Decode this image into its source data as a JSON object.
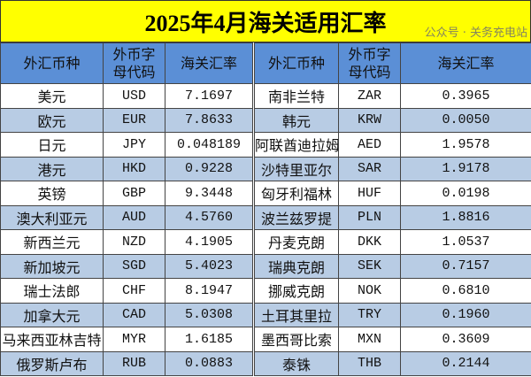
{
  "title": "2025年4月海关适用汇率",
  "headers": [
    "外汇币种",
    "外币字母代码",
    "海关汇率",
    "外汇币种",
    "外币字母代码",
    "海关汇率"
  ],
  "rows": [
    [
      "美元",
      "USD",
      "7.1697",
      "南非兰特",
      "ZAR",
      "0.3965"
    ],
    [
      "欧元",
      "EUR",
      "7.8633",
      "韩元",
      "KRW",
      "0.0050"
    ],
    [
      "日元",
      "JPY",
      "0.048189",
      "阿联酋迪拉姆",
      "AED",
      "1.9578"
    ],
    [
      "港元",
      "HKD",
      "0.9228",
      "沙特里亚尔",
      "SAR",
      "1.9178"
    ],
    [
      "英镑",
      "GBP",
      "9.3448",
      "匈牙利福林",
      "HUF",
      "0.0198"
    ],
    [
      "澳大利亚元",
      "AUD",
      "4.5760",
      "波兰兹罗提",
      "PLN",
      "1.8816"
    ],
    [
      "新西兰元",
      "NZD",
      "4.1905",
      "丹麦克朗",
      "DKK",
      "1.0537"
    ],
    [
      "新加坡元",
      "SGD",
      "5.4023",
      "瑞典克朗",
      "SEK",
      "0.7157"
    ],
    [
      "瑞士法郎",
      "CHF",
      "8.1947",
      "挪威克朗",
      "NOK",
      "0.6810"
    ],
    [
      "加拿大元",
      "CAD",
      "5.0308",
      "土耳其里拉",
      "TRY",
      "0.1960"
    ],
    [
      "马来西亚林吉特",
      "MYR",
      "1.6185",
      "墨西哥比索",
      "MXN",
      "0.3609"
    ],
    [
      "俄罗斯卢布",
      "RUB",
      "0.0883",
      "泰铢",
      "THB",
      "0.2144"
    ]
  ],
  "watermark": "公众号 · 关务充电站",
  "colors": {
    "title_bg": "#ffff00",
    "header_bg": "#5b8fd6",
    "alt_row": "#b8cce4"
  }
}
